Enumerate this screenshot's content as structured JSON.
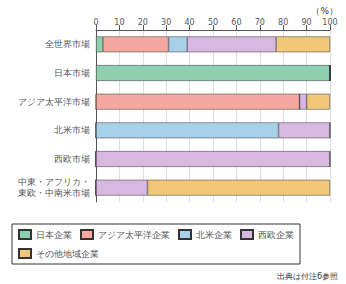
{
  "chart_data": {
    "type": "bar",
    "orientation": "horizontal",
    "stacked": true,
    "categories": [
      "全世界市場",
      "日本市場",
      "アジア太平洋市場",
      "北米市場",
      "西欧市場",
      "中東・アフリカ・\n東欧・中南米市場"
    ],
    "series": [
      {
        "name": "日本企業",
        "color": "#8ecfb0",
        "values": [
          3,
          100,
          0,
          0,
          0,
          0
        ]
      },
      {
        "name": "アジア太平洋企業",
        "color": "#f4a8a0",
        "values": [
          28,
          0,
          87,
          0,
          0,
          0
        ]
      },
      {
        "name": "北米企業",
        "color": "#a8d0e8",
        "values": [
          8,
          0,
          0,
          78,
          0,
          0
        ]
      },
      {
        "name": "西欧企業",
        "color": "#d8b8e0",
        "values": [
          38,
          0,
          3,
          22,
          100,
          22
        ]
      },
      {
        "name": "その他地域企業",
        "color": "#f0c878",
        "values": [
          23,
          0,
          10,
          0,
          0,
          78
        ]
      }
    ],
    "xlim": [
      0,
      100
    ],
    "xticks": [
      0,
      10,
      20,
      30,
      40,
      50,
      60,
      70,
      80,
      90,
      100
    ],
    "grid": true,
    "legend": "bottom",
    "annotations": [
      "（%）",
      "出典は付注6参照"
    ]
  }
}
